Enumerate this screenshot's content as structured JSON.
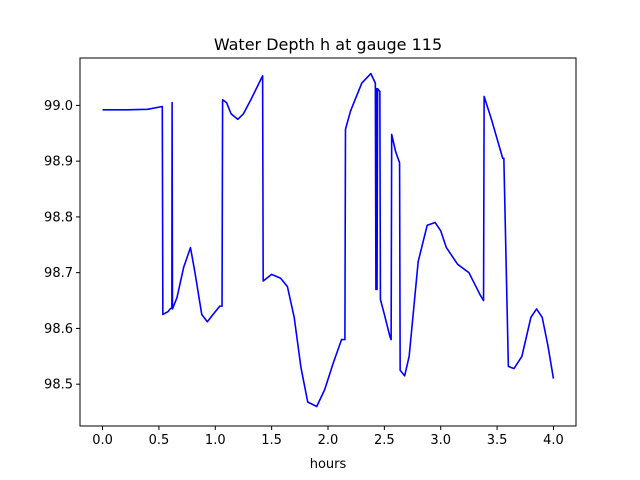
{
  "chart_data": {
    "type": "line",
    "title": "Water Depth h at gauge 115",
    "xlabel": "hours",
    "ylabel": "",
    "xlim": [
      -0.2,
      4.2
    ],
    "ylim": [
      98.425,
      99.085
    ],
    "xticks": [
      0.0,
      0.5,
      1.0,
      1.5,
      2.0,
      2.5,
      3.0,
      3.5,
      4.0
    ],
    "xtick_labels": [
      "0.0",
      "0.5",
      "1.0",
      "1.5",
      "2.0",
      "2.5",
      "3.0",
      "3.5",
      "4.0"
    ],
    "yticks": [
      98.5,
      98.6,
      98.7,
      98.8,
      98.9,
      99.0
    ],
    "ytick_labels": [
      "98.5",
      "98.6",
      "98.7",
      "98.8",
      "98.9",
      "99.0"
    ],
    "grid": false,
    "colors": {
      "line": "#0000ff"
    },
    "series": [
      {
        "x": [
          0.0,
          0.2,
          0.4,
          0.53,
          0.535,
          0.58,
          0.6,
          0.615,
          0.617,
          0.62,
          0.66,
          0.72,
          0.78,
          0.82,
          0.88,
          0.93,
          0.98,
          1.04,
          1.06,
          1.065,
          1.1,
          1.14,
          1.2,
          1.25,
          1.32,
          1.42,
          1.425,
          1.5,
          1.58,
          1.64,
          1.7,
          1.76,
          1.82,
          1.9,
          1.97,
          2.05,
          2.12,
          2.15,
          2.155,
          2.2,
          2.3,
          2.38,
          2.42,
          2.425,
          2.43,
          2.435,
          2.44,
          2.46,
          2.465,
          2.5,
          2.55,
          2.56,
          2.565,
          2.6,
          2.635,
          2.64,
          2.68,
          2.72,
          2.8,
          2.88,
          2.95,
          3.0,
          3.05,
          3.15,
          3.25,
          3.3,
          3.35,
          3.38,
          3.385,
          3.45,
          3.55,
          3.56,
          3.6,
          3.65,
          3.72,
          3.8,
          3.85,
          3.9,
          3.95,
          4.0
        ],
        "y": [
          98.992,
          98.992,
          98.993,
          98.998,
          98.625,
          98.63,
          98.635,
          98.637,
          99.005,
          98.635,
          98.655,
          98.71,
          98.745,
          98.7,
          98.625,
          98.612,
          98.625,
          98.64,
          98.64,
          99.01,
          99.005,
          98.985,
          98.975,
          98.985,
          99.012,
          99.053,
          98.685,
          98.697,
          98.69,
          98.675,
          98.62,
          98.53,
          98.468,
          98.46,
          98.49,
          98.54,
          98.58,
          98.58,
          98.957,
          98.99,
          99.04,
          99.057,
          99.04,
          98.67,
          99.03,
          98.67,
          99.03,
          99.025,
          98.652,
          98.625,
          98.585,
          98.58,
          98.948,
          98.917,
          98.897,
          98.525,
          98.515,
          98.55,
          98.72,
          98.785,
          98.79,
          98.775,
          98.745,
          98.715,
          98.7,
          98.68,
          98.66,
          98.65,
          99.016,
          98.975,
          98.905,
          98.905,
          98.532,
          98.528,
          98.55,
          98.62,
          98.635,
          98.62,
          98.57,
          98.51
        ]
      }
    ]
  }
}
